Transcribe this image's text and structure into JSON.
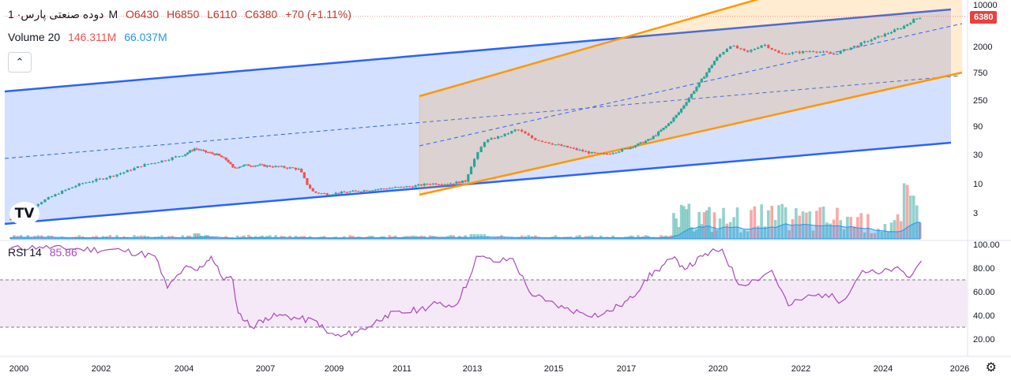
{
  "header": {
    "symbol": "دوده صنعتی پارس",
    "interval": "· 1M",
    "open": "O6430",
    "high": "H6850",
    "low": "L6110",
    "close": "C6380",
    "change": "+70 (+1.11%)"
  },
  "volume_legend": {
    "label": "Volume 20",
    "value1": "146.311M",
    "value2": "66.037M"
  },
  "rsi_legend": {
    "label": "RSI 14",
    "value": "85.86"
  },
  "last_price_label": "6380",
  "logo_text": "TV",
  "colors": {
    "up": "#26a69a",
    "down": "#ef5350",
    "channel_blue": "#2962ff",
    "channel_orange": "#ff9800",
    "rsi": "#ab47bc"
  },
  "chart_data": [
    {
      "type": "candlestick",
      "yscale": "log",
      "y_tick_labels": [
        "10000",
        "2000",
        "750",
        "250",
        "90",
        "30",
        "10",
        "3"
      ],
      "x_tick_labels": [
        "2000",
        "2002",
        "2004",
        "2007",
        "2009",
        "2011",
        "2013",
        "2015",
        "2017",
        "2020",
        "2022",
        "2024",
        "2026"
      ],
      "close_series": [
        {
          "t": 1999.8,
          "v": 2.3
        },
        {
          "t": 2000.2,
          "v": 3.5
        },
        {
          "t": 2000.6,
          "v": 5
        },
        {
          "t": 2001.0,
          "v": 7
        },
        {
          "t": 2001.5,
          "v": 10
        },
        {
          "t": 2002.0,
          "v": 12
        },
        {
          "t": 2002.5,
          "v": 15
        },
        {
          "t": 2003.0,
          "v": 20
        },
        {
          "t": 2003.5,
          "v": 24
        },
        {
          "t": 2004.0,
          "v": 30
        },
        {
          "t": 2004.4,
          "v": 38
        },
        {
          "t": 2004.8,
          "v": 33
        },
        {
          "t": 2005.2,
          "v": 30
        },
        {
          "t": 2005.6,
          "v": 24
        },
        {
          "t": 2005.8,
          "v": 18
        },
        {
          "t": 2006.2,
          "v": 20
        },
        {
          "t": 2006.8,
          "v": 20
        },
        {
          "t": 2007.3,
          "v": 19
        },
        {
          "t": 2007.8,
          "v": 18
        },
        {
          "t": 2008.0,
          "v": 17
        },
        {
          "t": 2008.2,
          "v": 10
        },
        {
          "t": 2008.4,
          "v": 7
        },
        {
          "t": 2008.8,
          "v": 6.5
        },
        {
          "t": 2009.3,
          "v": 7
        },
        {
          "t": 2009.8,
          "v": 7.5
        },
        {
          "t": 2010.3,
          "v": 8
        },
        {
          "t": 2010.8,
          "v": 8.5
        },
        {
          "t": 2011.3,
          "v": 9
        },
        {
          "t": 2011.8,
          "v": 10
        },
        {
          "t": 2012.3,
          "v": 10
        },
        {
          "t": 2012.8,
          "v": 11
        },
        {
          "t": 2013.0,
          "v": 22
        },
        {
          "t": 2013.3,
          "v": 50
        },
        {
          "t": 2013.8,
          "v": 65
        },
        {
          "t": 2014.1,
          "v": 80
        },
        {
          "t": 2014.5,
          "v": 55
        },
        {
          "t": 2015.0,
          "v": 45
        },
        {
          "t": 2015.5,
          "v": 38
        },
        {
          "t": 2016.0,
          "v": 32
        },
        {
          "t": 2016.4,
          "v": 30
        },
        {
          "t": 2016.9,
          "v": 36
        },
        {
          "t": 2017.4,
          "v": 45
        },
        {
          "t": 2017.8,
          "v": 55
        },
        {
          "t": 2018.3,
          "v": 90
        },
        {
          "t": 2018.7,
          "v": 150
        },
        {
          "t": 2019.1,
          "v": 300
        },
        {
          "t": 2019.5,
          "v": 600
        },
        {
          "t": 2019.9,
          "v": 1200
        },
        {
          "t": 2020.3,
          "v": 2100
        },
        {
          "t": 2020.7,
          "v": 1600
        },
        {
          "t": 2021.1,
          "v": 2200
        },
        {
          "t": 2021.5,
          "v": 1500
        },
        {
          "t": 2021.9,
          "v": 1600
        },
        {
          "t": 2022.3,
          "v": 1700
        },
        {
          "t": 2022.8,
          "v": 1500
        },
        {
          "t": 2023.2,
          "v": 1900
        },
        {
          "t": 2023.7,
          "v": 2600
        },
        {
          "t": 2024.1,
          "v": 3300
        },
        {
          "t": 2024.5,
          "v": 4200
        },
        {
          "t": 2024.8,
          "v": 5600
        },
        {
          "t": 2025.0,
          "v": 6380
        }
      ]
    },
    {
      "type": "area",
      "title": "RSI 14",
      "y_tick_labels": [
        "100.00",
        "80.00",
        "60.00",
        "40.00",
        "20.00"
      ],
      "ylim": [
        20,
        100
      ],
      "bands": [
        30,
        70
      ],
      "series": [
        {
          "t": 1999.8,
          "v": 97
        },
        {
          "t": 2000.5,
          "v": 98
        },
        {
          "t": 2001.5,
          "v": 96
        },
        {
          "t": 2002.5,
          "v": 95
        },
        {
          "t": 2003.3,
          "v": 90
        },
        {
          "t": 2003.6,
          "v": 63
        },
        {
          "t": 2004.0,
          "v": 80
        },
        {
          "t": 2004.5,
          "v": 78
        },
        {
          "t": 2005.0,
          "v": 90
        },
        {
          "t": 2005.4,
          "v": 72
        },
        {
          "t": 2005.8,
          "v": 70
        },
        {
          "t": 2006.0,
          "v": 42
        },
        {
          "t": 2006.5,
          "v": 30
        },
        {
          "t": 2007.0,
          "v": 38
        },
        {
          "t": 2007.5,
          "v": 40
        },
        {
          "t": 2008.0,
          "v": 37
        },
        {
          "t": 2008.5,
          "v": 35
        },
        {
          "t": 2008.8,
          "v": 25
        },
        {
          "t": 2009.2,
          "v": 22
        },
        {
          "t": 2009.6,
          "v": 26
        },
        {
          "t": 2010.0,
          "v": 30
        },
        {
          "t": 2010.5,
          "v": 40
        },
        {
          "t": 2011.0,
          "v": 42
        },
        {
          "t": 2011.5,
          "v": 45
        },
        {
          "t": 2012.0,
          "v": 50
        },
        {
          "t": 2012.5,
          "v": 48
        },
        {
          "t": 2012.9,
          "v": 70
        },
        {
          "t": 2013.1,
          "v": 90
        },
        {
          "t": 2013.6,
          "v": 85
        },
        {
          "t": 2014.0,
          "v": 88
        },
        {
          "t": 2014.4,
          "v": 60
        },
        {
          "t": 2014.8,
          "v": 52
        },
        {
          "t": 2015.3,
          "v": 46
        },
        {
          "t": 2015.8,
          "v": 42
        },
        {
          "t": 2016.3,
          "v": 40
        },
        {
          "t": 2016.8,
          "v": 48
        },
        {
          "t": 2017.2,
          "v": 55
        },
        {
          "t": 2017.6,
          "v": 70
        },
        {
          "t": 2018.0,
          "v": 78
        },
        {
          "t": 2018.5,
          "v": 88
        },
        {
          "t": 2019.0,
          "v": 80
        },
        {
          "t": 2019.5,
          "v": 90
        },
        {
          "t": 2020.1,
          "v": 96
        },
        {
          "t": 2020.5,
          "v": 66
        },
        {
          "t": 2020.9,
          "v": 70
        },
        {
          "t": 2021.3,
          "v": 78
        },
        {
          "t": 2021.7,
          "v": 48
        },
        {
          "t": 2022.1,
          "v": 55
        },
        {
          "t": 2022.6,
          "v": 58
        },
        {
          "t": 2023.0,
          "v": 52
        },
        {
          "t": 2023.5,
          "v": 78
        },
        {
          "t": 2023.9,
          "v": 75
        },
        {
          "t": 2024.3,
          "v": 80
        },
        {
          "t": 2024.7,
          "v": 72
        },
        {
          "t": 2025.0,
          "v": 86
        }
      ]
    }
  ]
}
